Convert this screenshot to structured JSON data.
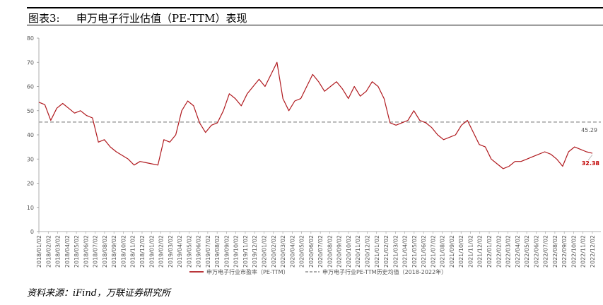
{
  "figure": {
    "label": "图表3:",
    "title": "申万电子行业估值（PE-TTM）表现"
  },
  "source_note": "资料来源：iFind，万联证券研究所",
  "chart_data": {
    "type": "line",
    "ylim": [
      0,
      80
    ],
    "yticks": [
      "0",
      "10",
      "20",
      "30",
      "40",
      "50",
      "60",
      "70",
      "80"
    ],
    "grid": false,
    "legend_position": "bottom",
    "x_tick_labels": [
      "2018/01/02",
      "2018/02/02",
      "2018/03/02",
      "2018/04/02",
      "2018/05/02",
      "2018/06/02",
      "2018/07/02",
      "2018/08/02",
      "2018/09/02",
      "2018/10/02",
      "2018/11/02",
      "2018/12/02",
      "2019/01/02",
      "2019/02/02",
      "2019/03/02",
      "2019/04/02",
      "2019/05/02",
      "2019/06/02",
      "2019/07/02",
      "2019/08/02",
      "2019/09/02",
      "2019/10/02",
      "2019/11/02",
      "2019/12/02",
      "2020/01/02",
      "2020/02/02",
      "2020/03/02",
      "2020/04/02",
      "2020/05/02",
      "2020/06/02",
      "2020/07/02",
      "2020/08/02",
      "2020/09/02",
      "2020/10/02",
      "2020/11/02",
      "2020/12/02",
      "2021/01/02",
      "2021/02/02",
      "2021/03/02",
      "2021/04/02",
      "2021/05/02",
      "2021/06/02",
      "2021/07/02",
      "2021/08/02",
      "2021/09/02",
      "2021/10/02",
      "2021/11/02",
      "2021/12/02",
      "2022/01/02",
      "2022/02/02",
      "2022/03/02",
      "2022/04/02",
      "2022/05/02",
      "2022/06/02",
      "2022/07/02",
      "2022/08/02",
      "2022/09/02",
      "2022/10/02",
      "2022/11/02",
      "2022/12/02"
    ],
    "series": [
      {
        "name": "申万电子行业市盈率（PE-TTM）",
        "color": "#b0191e",
        "style": "solid",
        "values": [
          53.5,
          52.5,
          46,
          51,
          53,
          51,
          49,
          50,
          48,
          47,
          37,
          38,
          35,
          33,
          31.5,
          30,
          27.5,
          29,
          28.5,
          28,
          27.5,
          38,
          37,
          40,
          50,
          54,
          52,
          45,
          41,
          44,
          45,
          50,
          57,
          55,
          52,
          57,
          60,
          63,
          60,
          65,
          70,
          55,
          50,
          54,
          55,
          60,
          65,
          62,
          58,
          60,
          62,
          59,
          55,
          60,
          56,
          58,
          62,
          60,
          55,
          45,
          44,
          45,
          46,
          50,
          46,
          45,
          43,
          40,
          38,
          39,
          40,
          44,
          46,
          41,
          36,
          35,
          30,
          28,
          26,
          27,
          29,
          29,
          30,
          31,
          32,
          33,
          32,
          30,
          27,
          33,
          35,
          34,
          33,
          32.38
        ]
      },
      {
        "name": "申万电子行业PE-TTM历史均值（2018-2022年）",
        "color": "#a0a0a0",
        "style": "dashed",
        "values": [
          45.29
        ]
      }
    ],
    "annotations": [
      {
        "text": "45.29",
        "color": "#555555"
      },
      {
        "text": "32.38",
        "color": "#c00000"
      }
    ]
  }
}
